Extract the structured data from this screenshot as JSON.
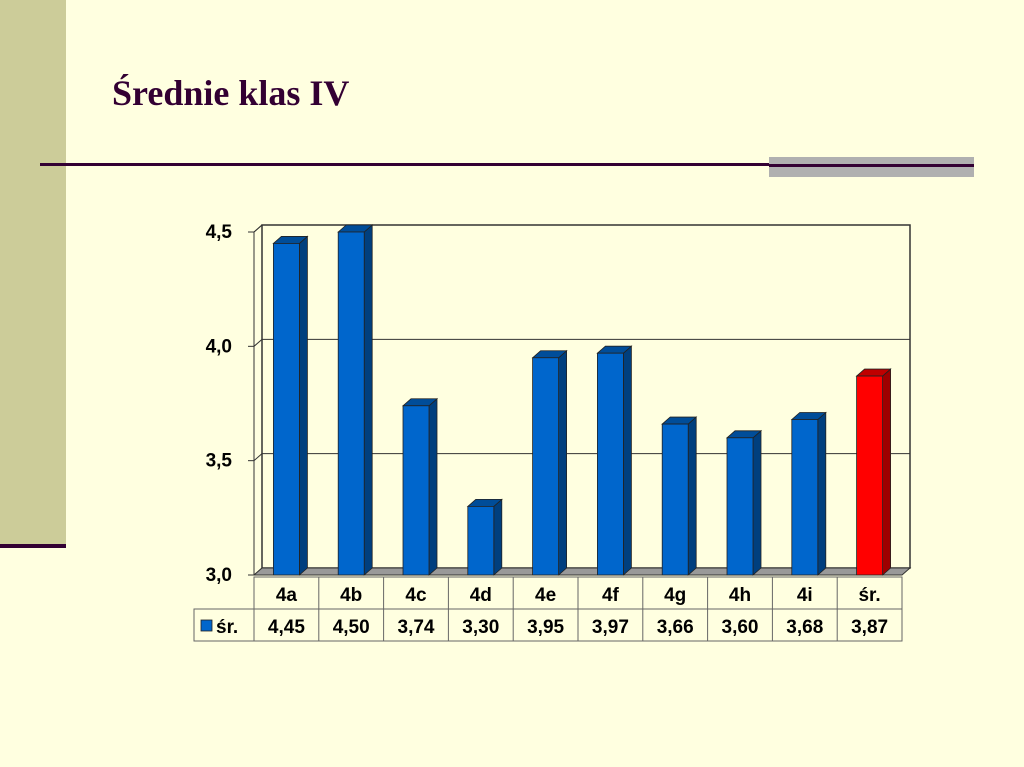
{
  "slide": {
    "title": "Średnie klas IV",
    "colors": {
      "background": "#ffffe0",
      "sidebar": "#cccc99",
      "title": "#330033",
      "rule": "#330033",
      "rule_accent": "#b0b0b0"
    }
  },
  "chart_data": {
    "type": "bar",
    "title": "",
    "xlabel": "",
    "ylabel": "",
    "categories": [
      "4a",
      "4b",
      "4c",
      "4d",
      "4e",
      "4f",
      "4g",
      "4h",
      "4i",
      "śr."
    ],
    "series": [
      {
        "name": "śr.",
        "values": [
          4.45,
          4.5,
          3.74,
          3.3,
          3.95,
          3.97,
          3.66,
          3.6,
          3.68,
          3.87
        ],
        "color": "#0066cc",
        "highlight_color": "#ff0000",
        "highlight_index": 9
      }
    ],
    "value_labels": [
      "4,45",
      "4,50",
      "3,74",
      "3,30",
      "3,95",
      "3,97",
      "3,66",
      "3,60",
      "3,68",
      "3,87"
    ],
    "ylim": [
      3.0,
      4.5
    ],
    "yticks": [
      3.0,
      3.5,
      4.0,
      4.5
    ],
    "ytick_labels": [
      "3,0",
      "3,5",
      "4,0",
      "4,5"
    ],
    "grid": true,
    "style": "3d-column",
    "data_table": true,
    "legend_position": "data-table"
  }
}
